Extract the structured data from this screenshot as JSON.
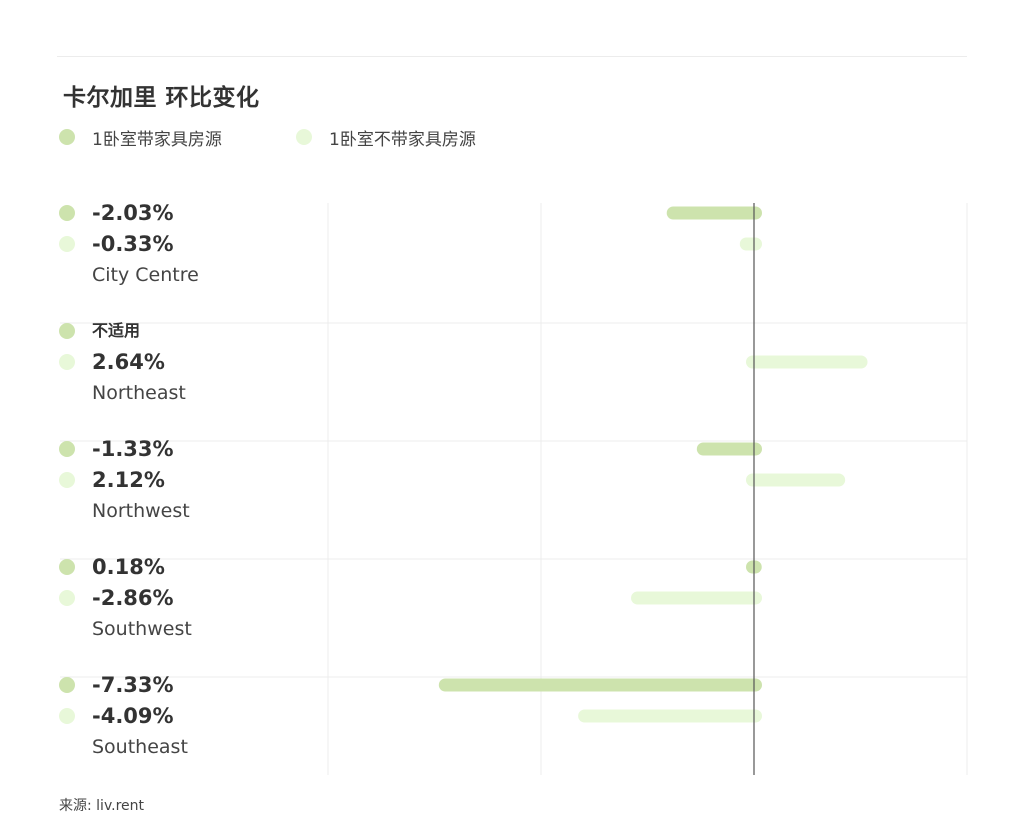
{
  "colors": {
    "furnished": "#cde3ad",
    "unfurnished": "#e8f8d9",
    "grid": "#ececec",
    "zero_line": "#555555"
  },
  "legend": [
    {
      "label": "1卧室带家具房源",
      "color": "#cde3ad"
    },
    {
      "label": "1卧室不带家具房源",
      "color": "#e8f8d9"
    }
  ],
  "source": "来源: liv.rent",
  "chart_data": {
    "type": "bar",
    "orientation": "horizontal",
    "title": "卡尔加里 环比变化",
    "categories": [
      "City Centre",
      "Northeast",
      "Northwest",
      "Southwest",
      "Southeast"
    ],
    "unit": "%",
    "x_range": [
      -10,
      5
    ],
    "grid": true,
    "legend_position": "top-left",
    "series": [
      {
        "name": "1卧室带家具房源",
        "values": [
          -2.03,
          null,
          -1.33,
          0.18,
          -7.33
        ],
        "labels": [
          "-2.03%",
          "不适用",
          "-1.33%",
          "0.18%",
          "-7.33%"
        ]
      },
      {
        "name": "1卧室不带家具房源",
        "values": [
          -0.33,
          2.64,
          2.12,
          -2.86,
          -4.09
        ],
        "labels": [
          "-0.33%",
          "2.64%",
          "2.12%",
          "-2.86%",
          "-4.09%"
        ]
      }
    ]
  }
}
